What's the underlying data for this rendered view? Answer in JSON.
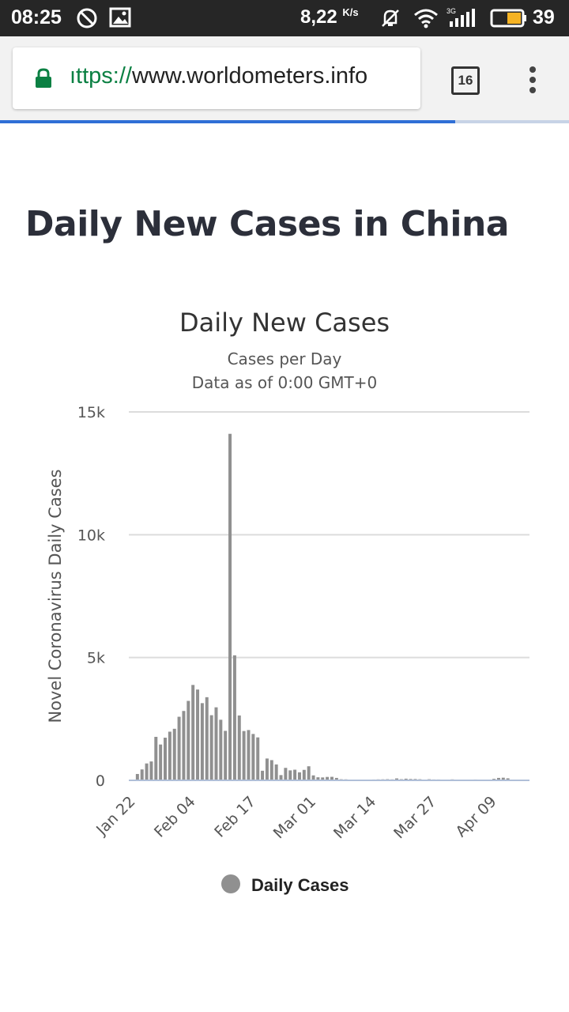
{
  "status_bar": {
    "time": "08:25",
    "net_speed": "8,22",
    "net_unit": "K/s",
    "signal_label": "3G",
    "battery_level": "39",
    "icons": [
      "do-not-disturb-icon",
      "image-icon",
      "silent-icon",
      "wifi-icon",
      "signal-icon",
      "battery-icon"
    ]
  },
  "browser": {
    "url_protocol": "ıttps://",
    "url_host": "www.worldometers.info",
    "tab_count": "16",
    "icons": [
      "lock-icon",
      "tab-switcher-icon",
      "overflow-menu-icon"
    ],
    "secure_color": "#0b8043",
    "progress_color": "#2f6fd6",
    "page_progress": 0.8
  },
  "page": {
    "heading": "Daily New Cases in China"
  },
  "chart_data": {
    "type": "bar",
    "title": "Daily New Cases",
    "subtitle_1": "Cases per Day",
    "subtitle_2": "Data as of 0:00 GMT+0",
    "ylabel": "Novel Coronavirus Daily Cases",
    "xlabel": "",
    "ylim": [
      0,
      15000
    ],
    "y_ticks": [
      0,
      5000,
      10000,
      15000
    ],
    "y_tick_labels": [
      "0",
      "5k",
      "10k",
      "15k"
    ],
    "x_tick_labels": [
      "Jan 22",
      "Feb 04",
      "Feb 17",
      "Mar 01",
      "Mar 14",
      "Mar 27",
      "Apr 09"
    ],
    "x_tick_index": [
      0,
      13,
      26,
      39,
      52,
      65,
      78
    ],
    "grid": true,
    "legend_position": "bottom-center",
    "bar_color": "#909090",
    "axis_color": "#b0bfd8",
    "series": [
      {
        "name": "Daily Cases",
        "values": [
          0,
          259,
          444,
          688,
          769,
          1771,
          1459,
          1737,
          1981,
          2099,
          2589,
          2825,
          3235,
          3884,
          3697,
          3143,
          3385,
          2652,
          2973,
          2467,
          2015,
          14108,
          5090,
          2641,
          2008,
          2048,
          1888,
          1749,
          391,
          889,
          823,
          648,
          214,
          508,
          406,
          433,
          327,
          427,
          573,
          202,
          125,
          119,
          139,
          143,
          99,
          44,
          40,
          19,
          24,
          15,
          20,
          13,
          34,
          39,
          41,
          46,
          39,
          78,
          47,
          67,
          55,
          54,
          45,
          31,
          45,
          36,
          35,
          19,
          30,
          39,
          32,
          25,
          30,
          30,
          34,
          26,
          30,
          23,
          62,
          99,
          108,
          82
        ]
      }
    ]
  }
}
